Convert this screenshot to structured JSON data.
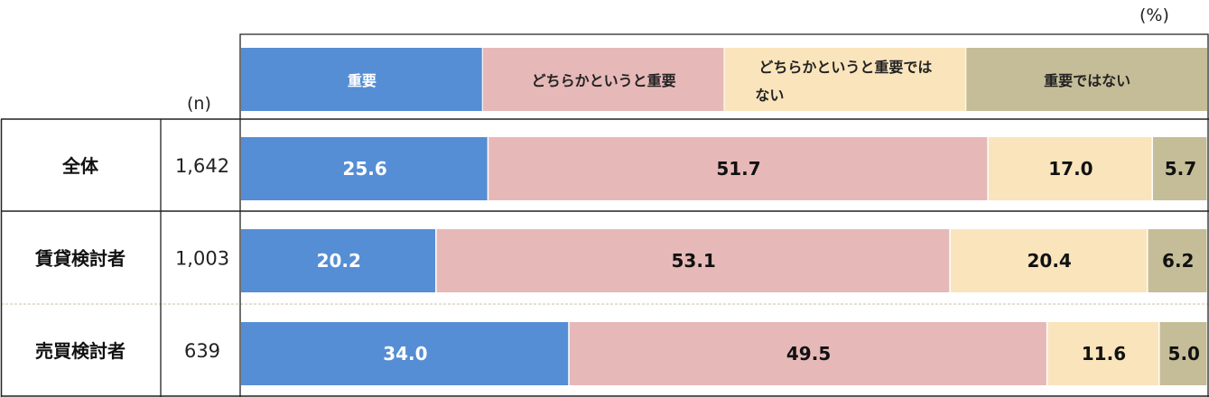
{
  "chart_data": {
    "type": "bar",
    "orientation": "horizontal",
    "stacked": true,
    "unit_label": "(%)",
    "n_header": "(n)",
    "categories": [
      "全体",
      "賃貸検討者",
      "売買検討者"
    ],
    "n_values": [
      "1,642",
      "1,003",
      "639"
    ],
    "series": [
      {
        "name": "重要",
        "values": [
          25.6,
          20.2,
          34.0
        ],
        "color": "#558ED5",
        "label_color": "#ffffff"
      },
      {
        "name": "どちらかというと重要",
        "values": [
          51.7,
          53.1,
          49.5
        ],
        "color": "#E6B9B8",
        "label_color": "#111111"
      },
      {
        "name": "どちらかというと重要ではない",
        "values": [
          17.0,
          20.4,
          11.6
        ],
        "color": "#FAE4BC",
        "label_color": "#111111"
      },
      {
        "name": "重要ではない",
        "values": [
          5.7,
          6.2,
          5.0
        ],
        "color": "#C4BD97",
        "label_color": "#111111"
      }
    ],
    "legend_placement": "top",
    "grid": false
  }
}
